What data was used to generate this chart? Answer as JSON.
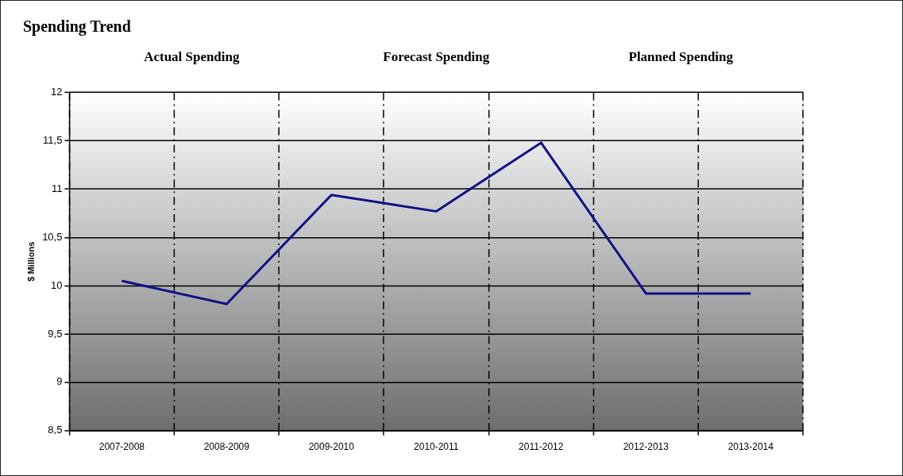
{
  "chart_data": {
    "type": "line",
    "title": "Spending Trend",
    "ylabel": "$ Millions",
    "categories": [
      "2007-2008",
      "2008-2009",
      "2009-2010",
      "2010-2011",
      "2011-2012",
      "2012-2013",
      "2013-2014"
    ],
    "series": [
      {
        "color": "#10108a",
        "values": [
          10.05,
          9.81,
          10.94,
          10.77,
          11.48,
          9.92,
          9.92
        ]
      }
    ],
    "ylim": [
      8.5,
      12
    ],
    "yticks": [
      {
        "value": 8.5,
        "label": "8,5"
      },
      9,
      {
        "value": 9.5,
        "label": "9,5"
      },
      10,
      {
        "value": 10.5,
        "label": "10,5"
      },
      11,
      {
        "value": 11.5,
        "label": "11,5"
      },
      12
    ],
    "annotations": [
      "Actual Spending",
      "Forecast Spending",
      "Planned Spending"
    ],
    "grid": true,
    "legend": false,
    "marker": "none",
    "line_style": "solid"
  }
}
